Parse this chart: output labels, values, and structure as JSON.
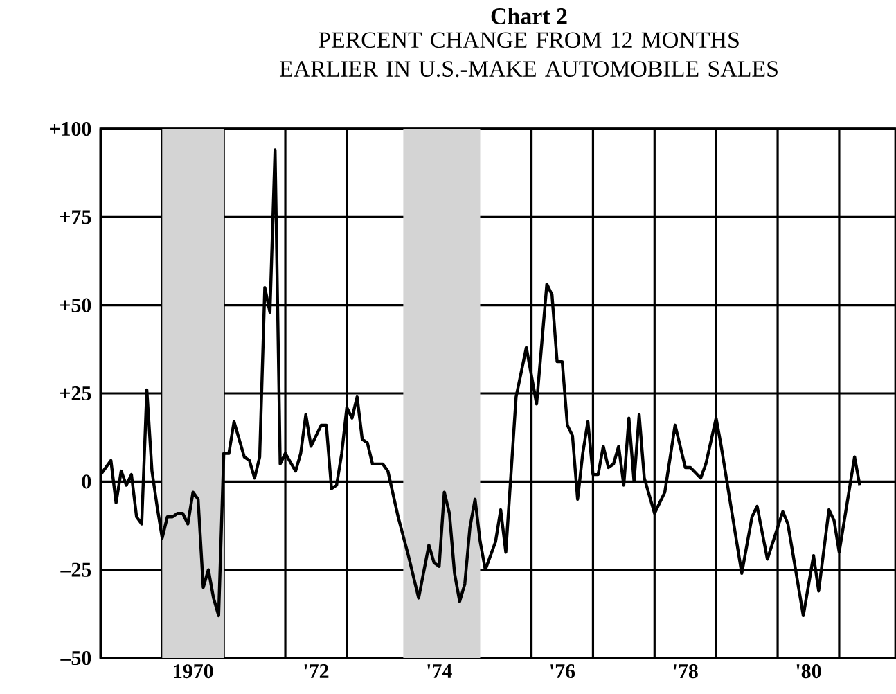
{
  "chart_data": {
    "type": "line",
    "title": "Chart 2",
    "subtitle": "PERCENT CHANGE FROM 12 MONTHS EARLIER IN U.S.-MAKE AUTOMOBILE SALES",
    "x": [
      "1969-01",
      "1969-03",
      "1969-04",
      "1969-05",
      "1969-06",
      "1969-07",
      "1969-08",
      "1969-09",
      "1969-10",
      "1969-11",
      "1969-12",
      "1970-01",
      "1970-02",
      "1970-03",
      "1970-04",
      "1970-05",
      "1970-06",
      "1970-07",
      "1970-08",
      "1970-09",
      "1970-10",
      "1970-11",
      "1970-12",
      "1971-01",
      "1971-02",
      "1971-03",
      "1971-05",
      "1971-06",
      "1971-07",
      "1971-08",
      "1971-09",
      "1971-10",
      "1971-11",
      "1971-12",
      "1972-01",
      "1972-03",
      "1972-04",
      "1972-05",
      "1972-06",
      "1972-08",
      "1972-09",
      "1972-10",
      "1972-11",
      "1972-12",
      "1973-01",
      "1973-02",
      "1973-03",
      "1973-04",
      "1973-05",
      "1973-06",
      "1973-08",
      "1973-09",
      "1973-11",
      "1974-01",
      "1974-03",
      "1974-05",
      "1974-06",
      "1974-07",
      "1974-08",
      "1974-09",
      "1974-10",
      "1974-11",
      "1974-12",
      "1975-01",
      "1975-02",
      "1975-03",
      "1975-04",
      "1975-06",
      "1975-07",
      "1975-08",
      "1975-10",
      "1975-12",
      "1976-02",
      "1976-04",
      "1976-05",
      "1976-06",
      "1976-07",
      "1976-08",
      "1976-09",
      "1976-10",
      "1976-11",
      "1976-12",
      "1977-01",
      "1977-02",
      "1977-03",
      "1977-04",
      "1977-05",
      "1977-06",
      "1977-07",
      "1977-08",
      "1977-09",
      "1977-10",
      "1977-11",
      "1978-01",
      "1978-03",
      "1978-05",
      "1978-07",
      "1978-08",
      "1978-10",
      "1978-11",
      "1979-01",
      "1979-02",
      "1979-04",
      "1979-06",
      "1979-08",
      "1979-09",
      "1979-11",
      "1980-02",
      "1980-03",
      "1980-06",
      "1980-08",
      "1980-09",
      "1980-11",
      "1980-12",
      "1981-01",
      "1981-04",
      "1981-05"
    ],
    "series": [
      {
        "color": "#000000",
        "values": [
          2,
          6,
          -6,
          3,
          -1,
          2,
          -10,
          -12,
          26,
          3,
          -7,
          -16,
          -10,
          -10,
          -9,
          -9,
          -12,
          -3,
          -5,
          -30,
          -25,
          -33,
          -38,
          8,
          8,
          17,
          7,
          6,
          1,
          7,
          55,
          48,
          94,
          5,
          8,
          3,
          8,
          19,
          10,
          16,
          16,
          -2,
          -1,
          8,
          21,
          18,
          24,
          12,
          11,
          5,
          5,
          3,
          -10,
          -21,
          -33,
          -18,
          -23,
          -24,
          -3,
          -9,
          -26,
          -34,
          -29,
          -13,
          -5,
          -17,
          -25,
          -17,
          -8,
          -20,
          24,
          38,
          22,
          56,
          53,
          34,
          34,
          16,
          13,
          -5,
          8,
          17,
          2,
          2,
          10,
          4,
          5,
          10,
          -1,
          18,
          0,
          19,
          1,
          -9,
          -3,
          16,
          4,
          4,
          1,
          5,
          18,
          10,
          -8,
          -26,
          -10,
          -7,
          -22,
          -8.5,
          -12,
          -38,
          -21,
          -31,
          -8,
          -11,
          -20,
          7,
          -1
        ]
      }
    ],
    "xlim": [
      "1969-01",
      "1981-12"
    ],
    "xticks": [
      {
        "value": "1969-01",
        "label": null
      },
      {
        "value": "1970-01",
        "label": null
      },
      {
        "value": "1971-01",
        "label": null
      },
      {
        "value": "1972-01",
        "label": null
      },
      {
        "value": "1973-01",
        "label": null
      },
      {
        "value": "1974-01",
        "label": null
      },
      {
        "value": "1975-01",
        "label": null
      },
      {
        "value": "1976-01",
        "label": null
      },
      {
        "value": "1977-01",
        "label": null
      },
      {
        "value": "1978-01",
        "label": null
      },
      {
        "value": "1979-01",
        "label": null
      },
      {
        "value": "1980-01",
        "label": null
      },
      {
        "value": "1981-01",
        "label": null
      },
      {
        "value": "1970-07",
        "label": "1970"
      },
      {
        "value": "1972-07",
        "label": "'72"
      },
      {
        "value": "1974-07",
        "label": "'74"
      },
      {
        "value": "1976-07",
        "label": "'76"
      },
      {
        "value": "1978-07",
        "label": "'78"
      },
      {
        "value": "1980-07",
        "label": "'80"
      }
    ],
    "ylim": [
      -50,
      100
    ],
    "yticks": [
      {
        "value": -50,
        "label": "–50"
      },
      {
        "value": -25,
        "label": "–25"
      },
      0,
      {
        "value": 25,
        "label": "+25"
      },
      {
        "value": 50,
        "label": "+50"
      },
      {
        "value": 75,
        "label": "+75"
      },
      {
        "value": 100,
        "label": "+100"
      }
    ],
    "bands": [
      {
        "axis": "x",
        "from": "1970-01",
        "to": "1971-01",
        "color": "#d4d4d4"
      },
      {
        "axis": "x",
        "from": "1973-12",
        "to": "1975-03",
        "color": "#d4d4d4"
      }
    ],
    "grid": true
  }
}
